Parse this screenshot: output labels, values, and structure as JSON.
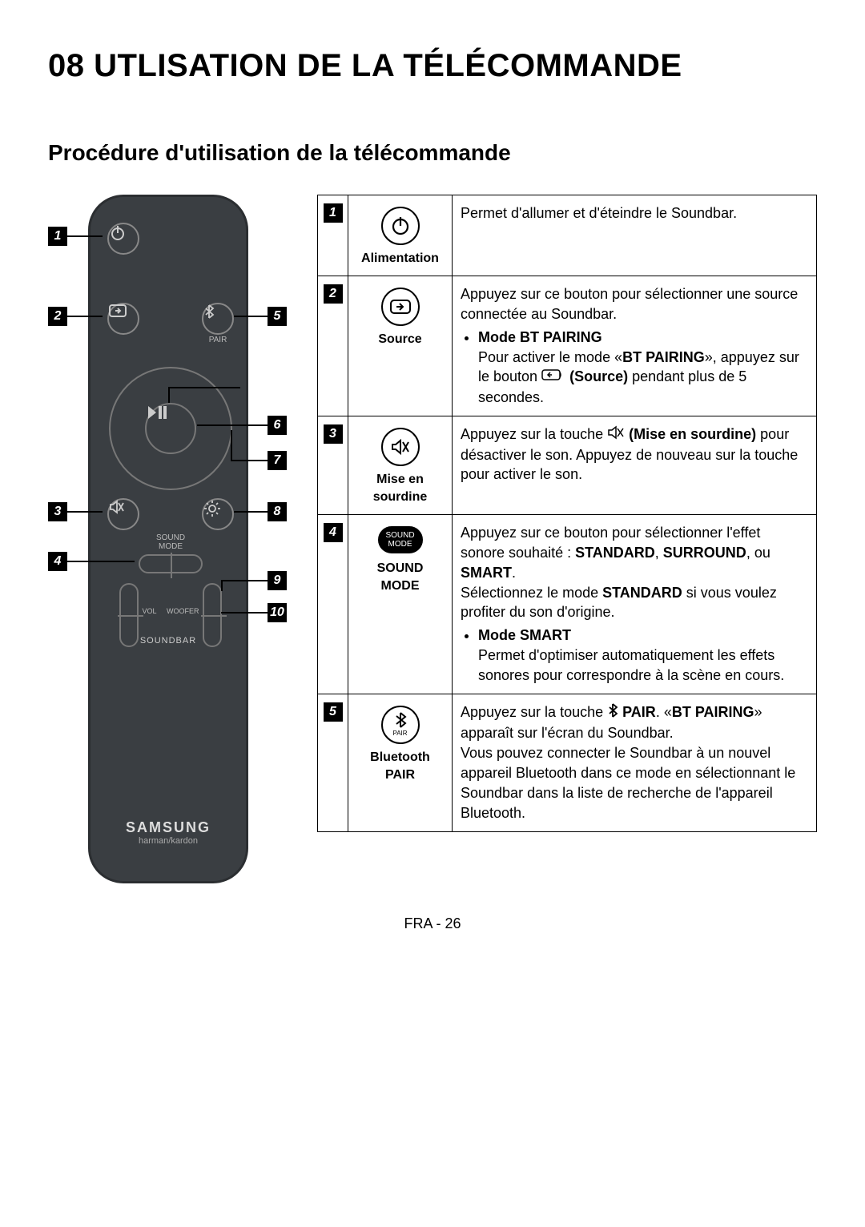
{
  "page": {
    "title": "08 UTLISATION DE LA TÉLÉCOMMANDE",
    "subtitle": "Procédure d'utilisation de la télécommande",
    "footer": "FRA - 26"
  },
  "remote": {
    "soundbar_label": "SOUNDBAR",
    "vol_label": "VOL",
    "woofer_label": "WOOFER",
    "sound_mode_l1": "SOUND",
    "sound_mode_l2": "MODE",
    "pair_label": "PAIR",
    "brand": "SAMSUNG",
    "subbrand": "harman/kardon",
    "callouts": [
      "1",
      "2",
      "3",
      "4",
      "5",
      "6",
      "7",
      "8",
      "9",
      "10"
    ]
  },
  "table": {
    "rows": [
      {
        "num": "1",
        "label": "Alimentation",
        "icon": "power",
        "desc_html": "Permet d'allumer et d'éteindre le Soundbar."
      },
      {
        "num": "2",
        "label": "Source",
        "icon": "source",
        "desc_html": "Appuyez sur ce bouton pour sélectionner une source connectée au Soundbar.<ul><li><b>Mode BT PAIRING</b><br>Pour activer le mode «<b>BT PAIRING</b>», appuyez sur le bouton <span class='inline-ic'><svg width='30' height='18'><rect x='1' y='3' width='22' height='12' rx='3' fill='none' stroke='#000' stroke-width='1.5'/><path d='M8 9 l5 0 M11 6 l-3 3 l3 3' stroke='#000' stroke-width='1.5' fill='none'/><path d='M23 6 a5 5 0 0 1 0 6' stroke='#000' stroke-width='1.5' fill='none'/></svg></span> <b>(Source)</b> pendant plus de 5 secondes.</li></ul>"
      },
      {
        "num": "3",
        "label": "Mise en sourdine",
        "icon": "mute",
        "desc_html": "Appuyez sur la touche <span class='inline-ic'><svg width='22' height='18'><path d='M2 6 L6 6 L11 2 L11 16 L6 12 L2 12 Z' fill='none' stroke='#000' stroke-width='1.5'/><line x1='13' y1='4' x2='20' y2='14' stroke='#000' stroke-width='1.5'/><line x1='20' y1='4' x2='13' y2='14' stroke='#000' stroke-width='1.5'/></svg></span> <b>(Mise en sourdine)</b> pour désactiver le son. Appuyez de nouveau sur la touche pour activer le son."
      },
      {
        "num": "4",
        "label": "SOUND MODE",
        "icon": "soundmode",
        "desc_html": "Appuyez sur ce bouton pour sélectionner l'effet sonore souhaité : <b>STANDARD</b>, <b>SURROUND</b>, ou <b>SMART</b>.<br>Sélectionnez le mode <b>STANDARD</b> si vous voulez profiter du son d'origine.<ul><li><b>Mode SMART</b><br>Permet d'optimiser automatiquement les effets sonores pour correspondre à la scène en cours.</li></ul>"
      },
      {
        "num": "5",
        "label": "Bluetooth PAIR",
        "icon": "btpair",
        "desc_html": "Appuyez sur la touche <span class='inline-ic'><svg width='14' height='20'><path d='M7 2 L7 18 M7 2 L12 6 L3 14 M7 18 L12 14 L3 6' stroke='#000' stroke-width='1.8' fill='none'/></svg></span> <b>PAIR</b>. «<b>BT PAIRING</b>» apparaît sur l'écran du Soundbar.<br>Vous pouvez connecter le Soundbar à un nouvel appareil Bluetooth dans ce mode en sélectionnant le Soundbar dans la liste de recherche de l'appareil Bluetooth."
      }
    ]
  }
}
